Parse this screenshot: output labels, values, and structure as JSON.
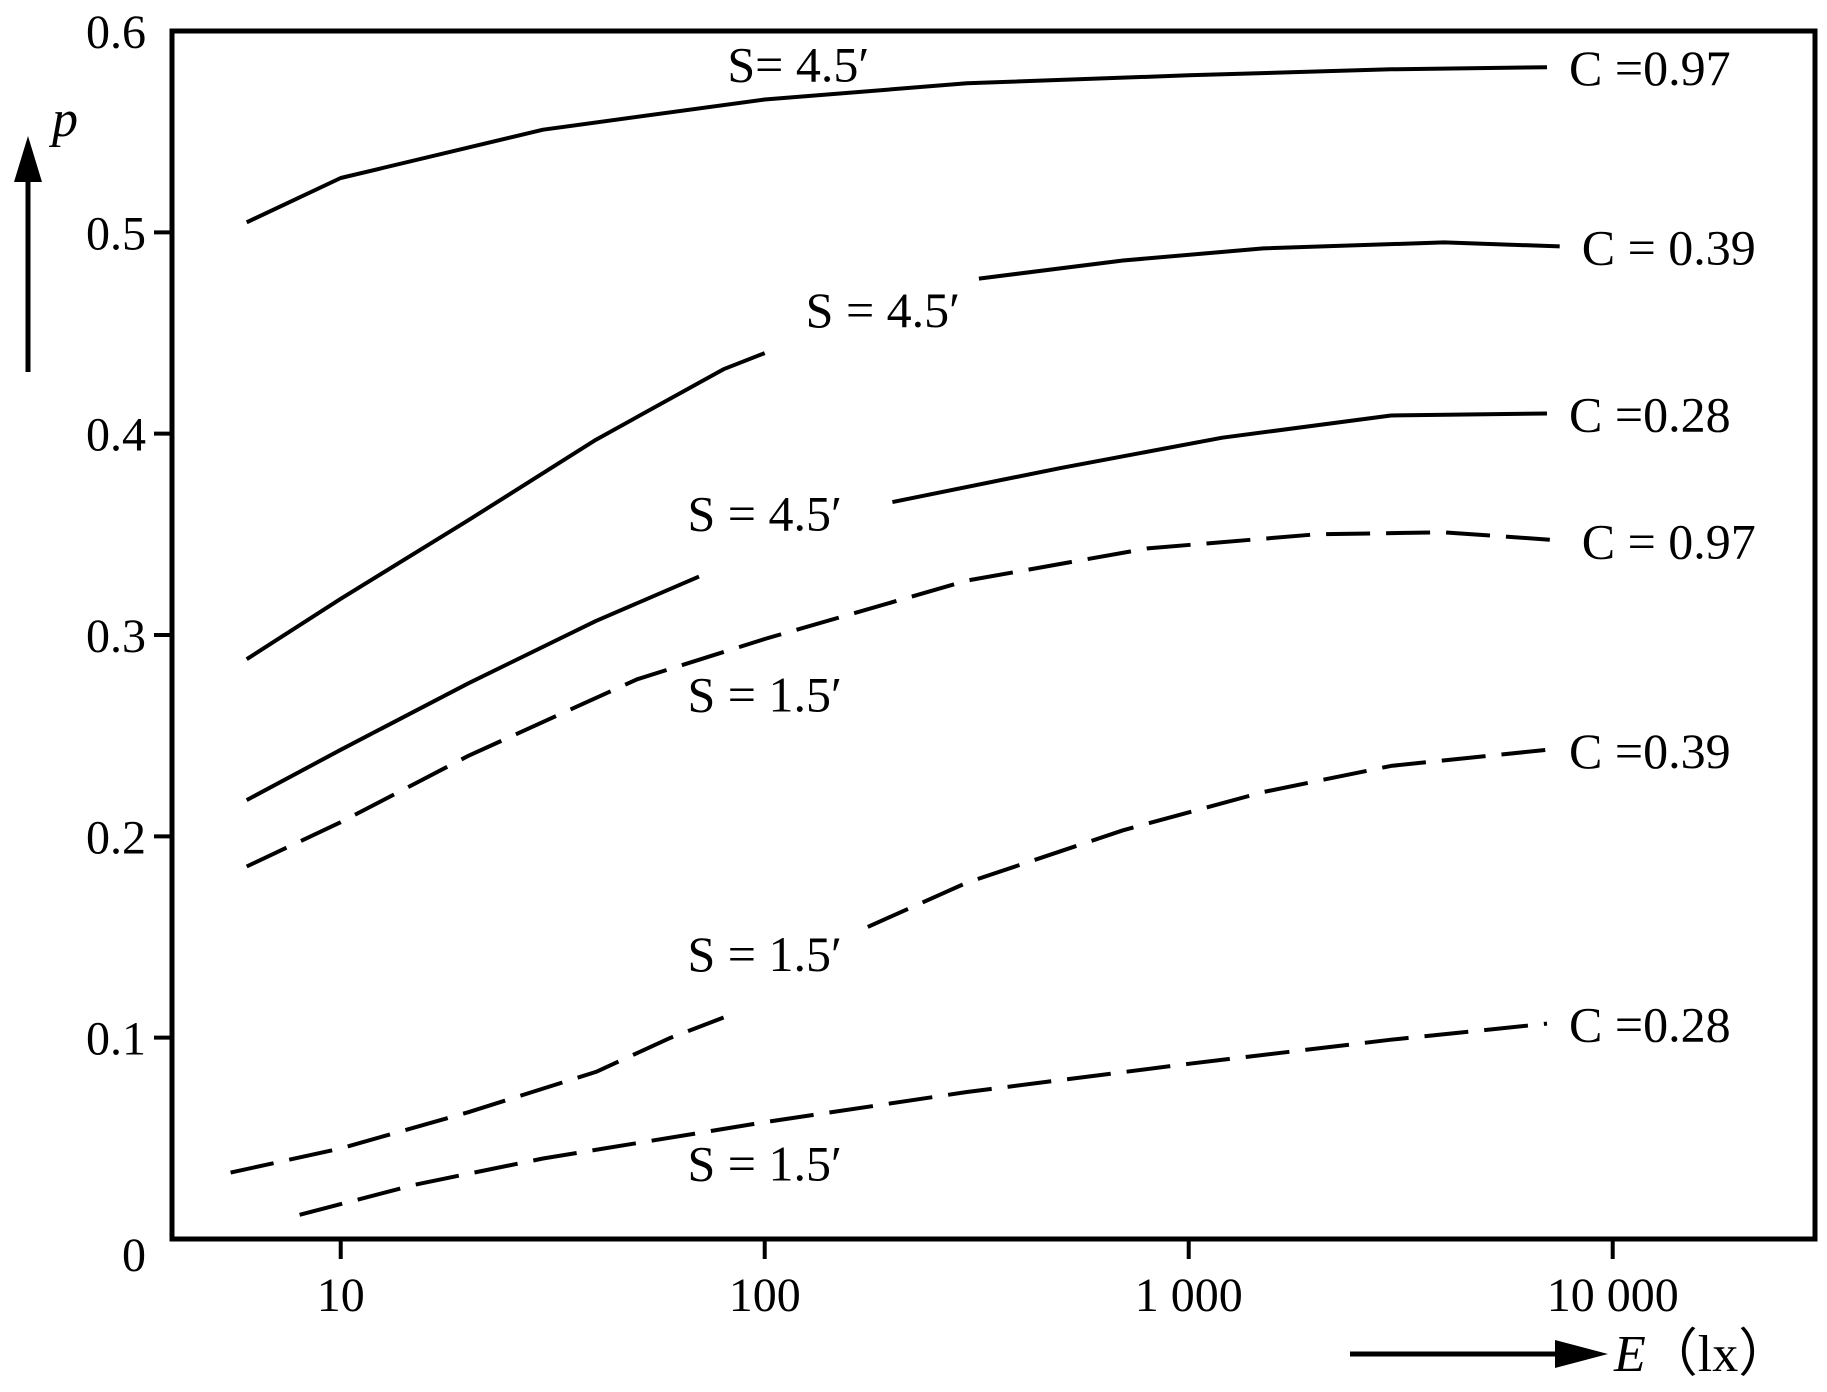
{
  "chart_data": {
    "type": "line",
    "x_scale": "log",
    "xlim": [
      4,
      30000
    ],
    "ylim": [
      0,
      0.6
    ],
    "grid": false,
    "x_ticks": [
      {
        "value": 10,
        "label": "10"
      },
      {
        "value": 100,
        "label": "100"
      },
      {
        "value": 1000,
        "label": "1 000"
      },
      {
        "value": 10000,
        "label": "10 000"
      }
    ],
    "y_ticks": [
      {
        "value": 0,
        "label": "0"
      },
      {
        "value": 0.1,
        "label": "0.1"
      },
      {
        "value": 0.2,
        "label": "0.2"
      },
      {
        "value": 0.3,
        "label": "0.3"
      },
      {
        "value": 0.4,
        "label": "0.4"
      },
      {
        "value": 0.5,
        "label": "0.5"
      },
      {
        "value": 0.6,
        "label": "0.6"
      }
    ],
    "xlabel": {
      "symbol": "E",
      "unit": "（lx）"
    },
    "ylabel": {
      "symbol": "p"
    },
    "series": [
      {
        "c_label": "C =0.97",
        "s_label": "S= 4.5′",
        "style": "solid",
        "s_at": [
          120,
          0.575
        ],
        "segments": [
          [
            [
              6,
              0.505
            ],
            [
              10,
              0.527
            ],
            [
              30,
              0.551
            ],
            [
              100,
              0.566
            ],
            [
              300,
              0.574
            ],
            [
              1000,
              0.578
            ],
            [
              3000,
              0.581
            ],
            [
              7000,
              0.582
            ]
          ]
        ]
      },
      {
        "c_label": "C = 0.39",
        "s_label": "S = 4.5′",
        "style": "solid",
        "s_at": [
          190,
          0.453
        ],
        "segments": [
          [
            [
              6,
              0.288
            ],
            [
              10,
              0.318
            ],
            [
              20,
              0.357
            ],
            [
              40,
              0.397
            ],
            [
              80,
              0.432
            ],
            [
              100,
              0.44
            ]
          ],
          [
            [
              320,
              0.477
            ],
            [
              700,
              0.486
            ],
            [
              1500,
              0.492
            ],
            [
              4000,
              0.495
            ],
            [
              7500,
              0.493
            ]
          ]
        ]
      },
      {
        "c_label": "C =0.28",
        "s_label": "S = 4.5′",
        "style": "solid",
        "s_at": [
          100,
          0.352
        ],
        "segments": [
          [
            [
              6,
              0.218
            ],
            [
              10,
              0.243
            ],
            [
              20,
              0.276
            ],
            [
              40,
              0.307
            ],
            [
              70,
              0.329
            ]
          ],
          [
            [
              200,
              0.366
            ],
            [
              500,
              0.383
            ],
            [
              1200,
              0.398
            ],
            [
              3000,
              0.409
            ],
            [
              7000,
              0.41
            ]
          ]
        ]
      },
      {
        "c_label": "C = 0.97",
        "s_label": "S = 1.5′",
        "style": "dashed",
        "s_at": [
          100,
          0.262
        ],
        "segments": [
          [
            [
              6,
              0.185
            ],
            [
              10,
              0.207
            ],
            [
              20,
              0.24
            ],
            [
              50,
              0.278
            ],
            [
              100,
              0.298
            ],
            [
              300,
              0.327
            ],
            [
              800,
              0.343
            ],
            [
              2000,
              0.35
            ],
            [
              4000,
              0.351
            ],
            [
              7500,
              0.347
            ]
          ]
        ]
      },
      {
        "c_label": "C =0.39",
        "s_label": "S = 1.5′",
        "style": "dashed",
        "s_at": [
          100,
          0.133
        ],
        "segments": [
          [
            [
              5.5,
              0.033
            ],
            [
              10,
              0.045
            ],
            [
              20,
              0.063
            ],
            [
              40,
              0.083
            ],
            [
              60,
              0.1
            ],
            [
              80,
              0.11
            ]
          ],
          [
            [
              175,
              0.155
            ],
            [
              300,
              0.177
            ],
            [
              700,
              0.203
            ],
            [
              1500,
              0.222
            ],
            [
              3000,
              0.235
            ],
            [
              7000,
              0.243
            ]
          ]
        ]
      },
      {
        "c_label": "C =0.28",
        "s_label": "S = 1.5′",
        "style": "dashed",
        "s_at": [
          100,
          0.029
        ],
        "segments": [
          [
            [
              8,
              0.012
            ],
            [
              15,
              0.027
            ],
            [
              30,
              0.04
            ],
            [
              100,
              0.058
            ],
            [
              300,
              0.073
            ],
            [
              1000,
              0.087
            ],
            [
              3000,
              0.099
            ],
            [
              7000,
              0.107
            ]
          ]
        ]
      }
    ]
  }
}
